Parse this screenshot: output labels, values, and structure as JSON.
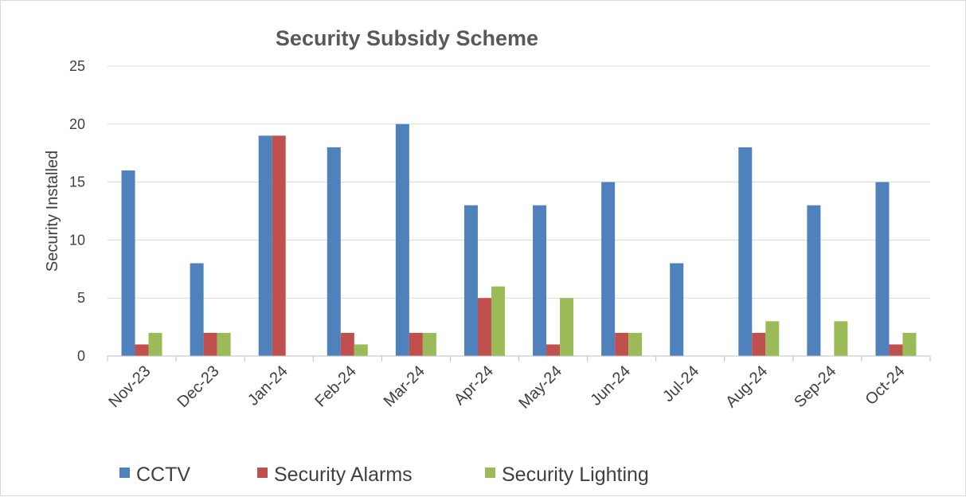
{
  "chart_data": {
    "type": "bar",
    "title": "Security Subsidy Scheme",
    "xlabel": "",
    "ylabel": "Security Installed",
    "ylim": [
      0,
      25
    ],
    "yticks": [
      0,
      5,
      10,
      15,
      20,
      25
    ],
    "grid": true,
    "legend_position": "bottom-left",
    "categories": [
      "Nov-23",
      "Dec-23",
      "Jan-24",
      "Feb-24",
      "Mar-24",
      "Apr-24",
      "May-24",
      "Jun-24",
      "Jul-24",
      "Aug-24",
      "Sep-24",
      "Oct-24"
    ],
    "series": [
      {
        "name": "CCTV",
        "color": "#4f81bd",
        "values": [
          16,
          8,
          19,
          18,
          20,
          13,
          13,
          15,
          8,
          18,
          13,
          15
        ]
      },
      {
        "name": "Security Alarms",
        "color": "#c0504d",
        "values": [
          1,
          2,
          19,
          2,
          2,
          5,
          1,
          2,
          0,
          2,
          0,
          1
        ]
      },
      {
        "name": "Security Lighting",
        "color": "#9bbb59",
        "values": [
          2,
          2,
          0,
          1,
          2,
          6,
          5,
          2,
          0,
          3,
          3,
          2
        ]
      }
    ]
  }
}
